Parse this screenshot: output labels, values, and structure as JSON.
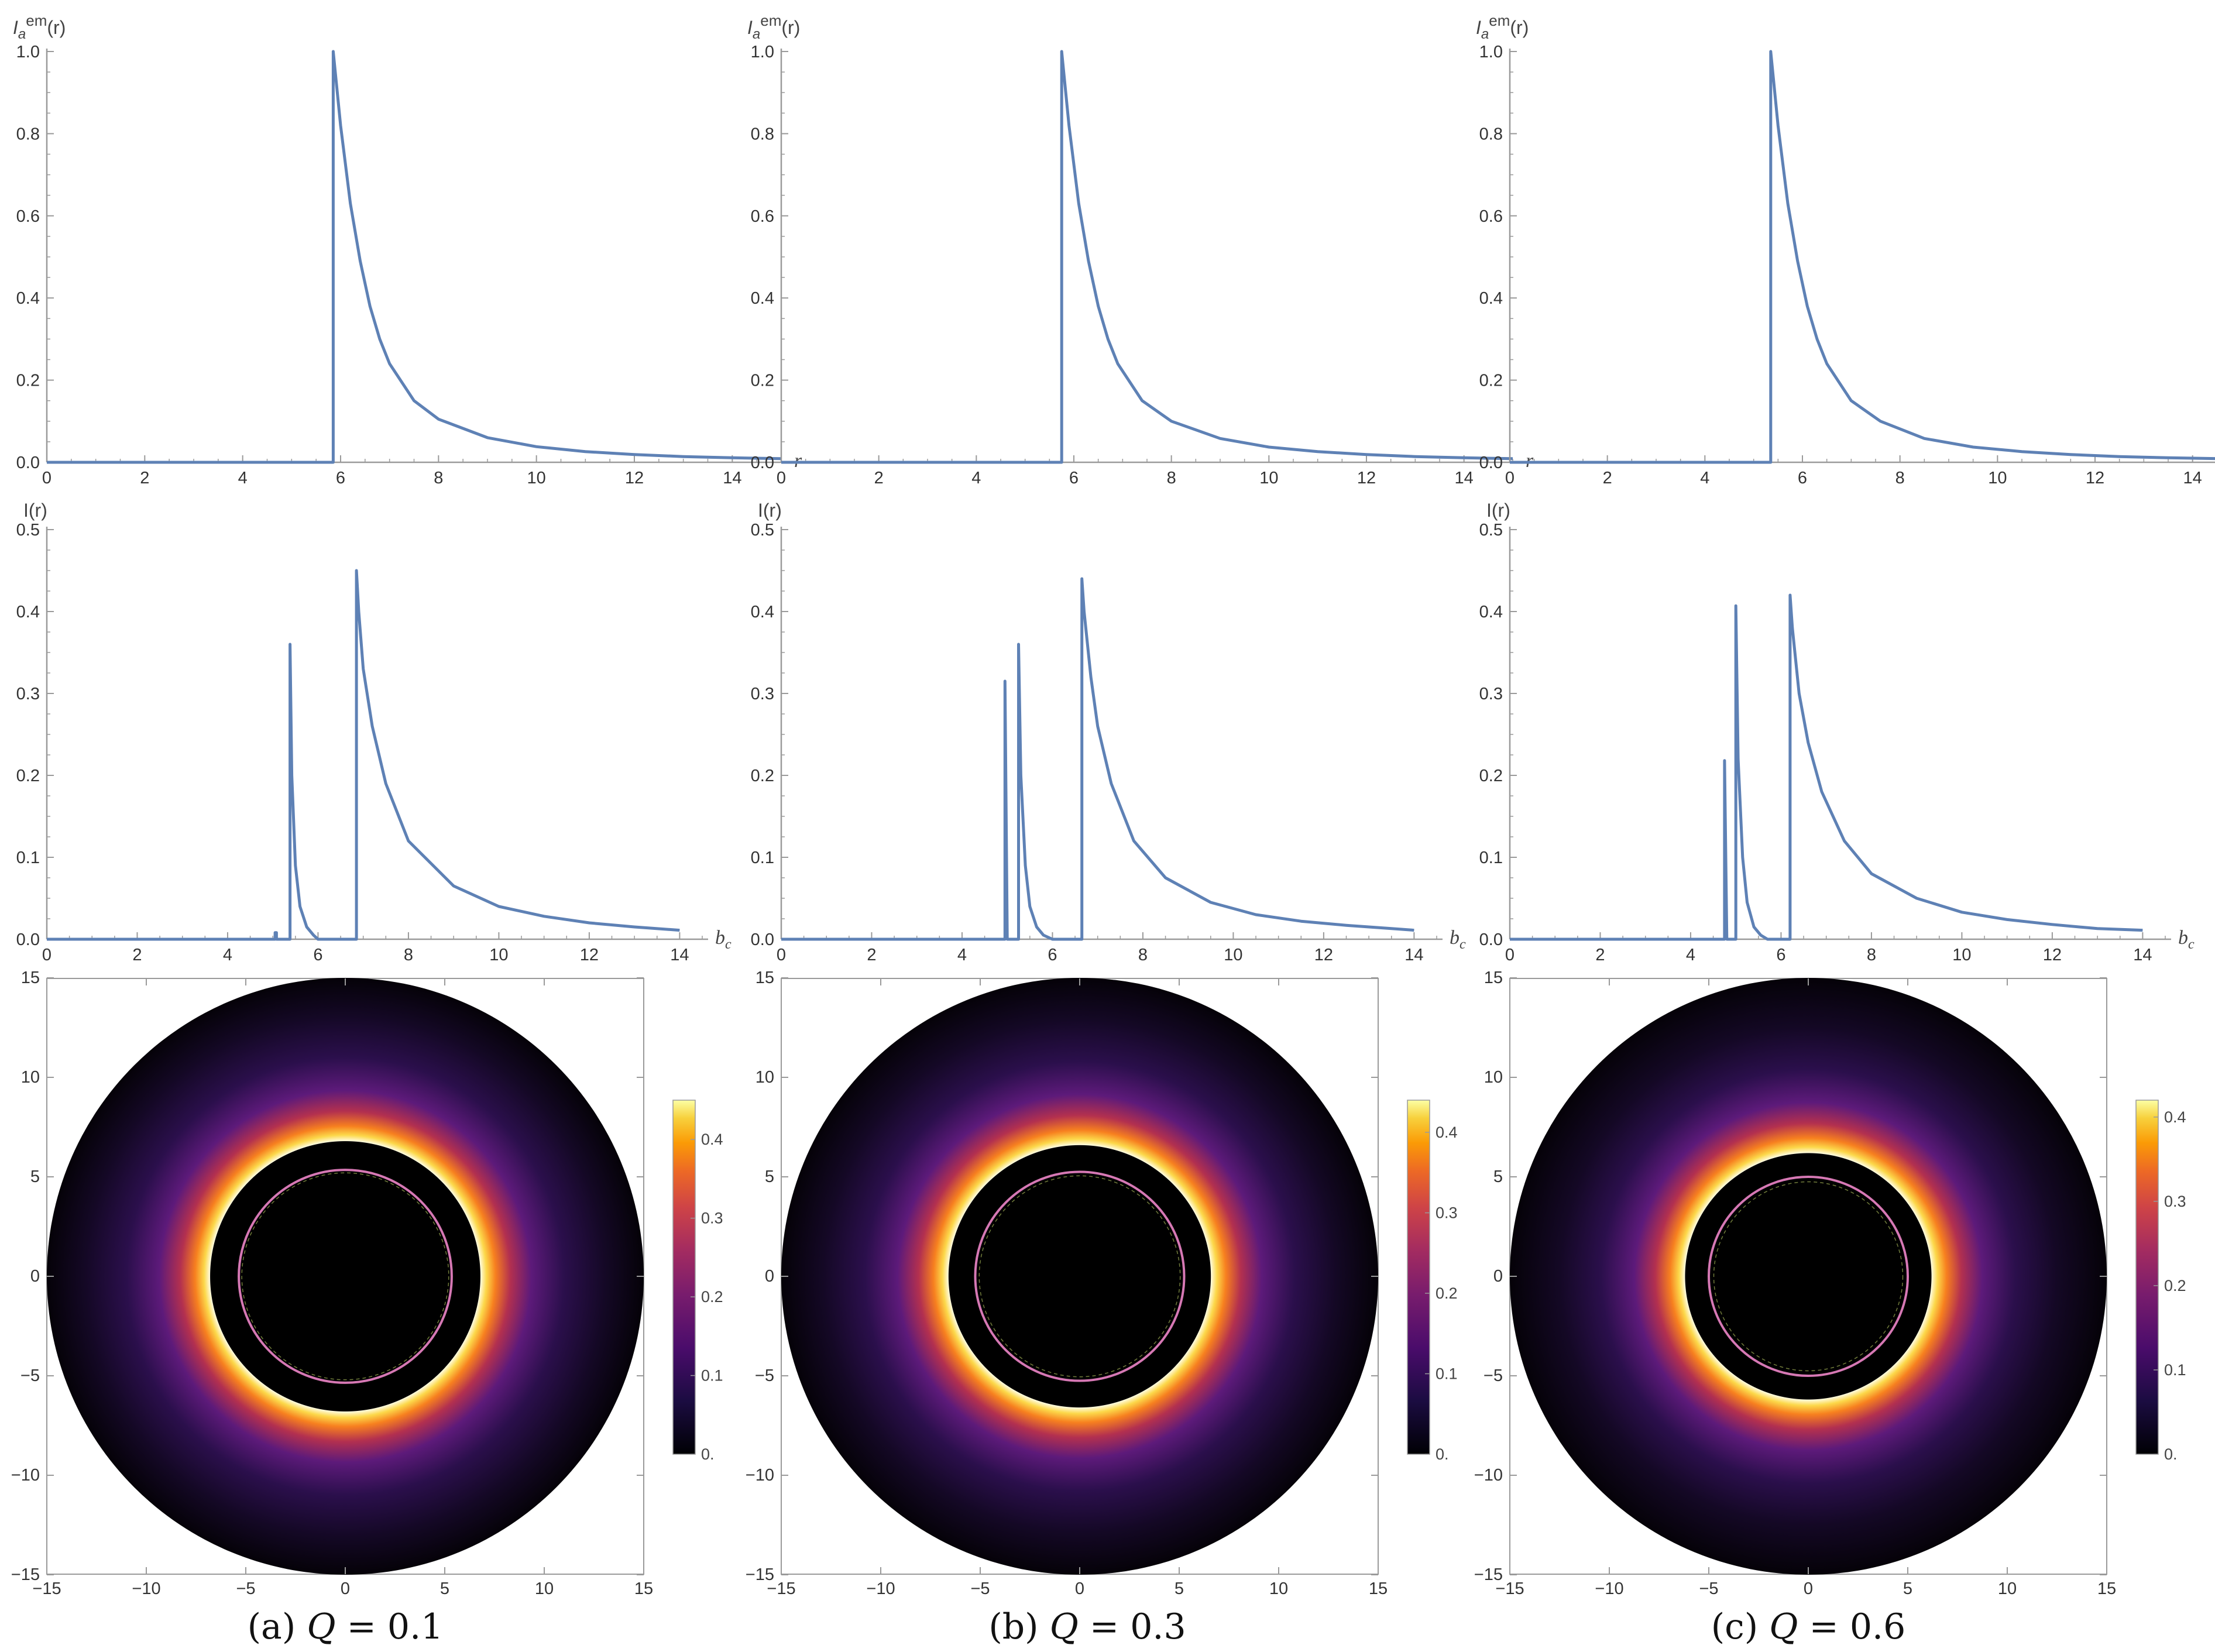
{
  "chart_data": [
    {
      "type": "line",
      "panel": "a",
      "row": "emission",
      "ylabel": "I_a^em(r)",
      "ylabel_sup": "em",
      "xlabel": "r",
      "xlim": [
        0,
        15
      ],
      "ylim": [
        0,
        1
      ],
      "xticks": [
        "0",
        "2",
        "4",
        "6",
        "8",
        "10",
        "12",
        "14"
      ],
      "yticks": [
        "0.0",
        "0.2",
        "0.4",
        "0.6",
        "0.8",
        "1.0"
      ],
      "series": [
        {
          "start": 5.85,
          "x": [
            5.85,
            6.0,
            6.2,
            6.4,
            6.6,
            6.8,
            7.0,
            7.5,
            8,
            9,
            10,
            11,
            12,
            13,
            14,
            15
          ],
          "values": [
            1.0,
            0.82,
            0.63,
            0.49,
            0.38,
            0.3,
            0.24,
            0.15,
            0.105,
            0.06,
            0.038,
            0.026,
            0.019,
            0.014,
            0.011,
            0.009
          ]
        }
      ]
    },
    {
      "type": "line",
      "panel": "b",
      "row": "emission",
      "ylabel": "I_a^em(r)",
      "ylabel_sup": "em",
      "xlabel": "r",
      "xlim": [
        0,
        15
      ],
      "ylim": [
        0,
        1
      ],
      "xticks": [
        "0",
        "2",
        "4",
        "6",
        "8",
        "10",
        "12",
        "14"
      ],
      "yticks": [
        "0.0",
        "0.2",
        "0.4",
        "0.6",
        "0.8",
        "1.0"
      ],
      "series": [
        {
          "start": 5.75,
          "x": [
            5.75,
            5.9,
            6.1,
            6.3,
            6.5,
            6.7,
            6.9,
            7.4,
            8,
            9,
            10,
            11,
            12,
            13,
            14,
            15
          ],
          "values": [
            1.0,
            0.82,
            0.63,
            0.49,
            0.38,
            0.3,
            0.24,
            0.15,
            0.1,
            0.058,
            0.037,
            0.026,
            0.019,
            0.014,
            0.011,
            0.009
          ]
        }
      ]
    },
    {
      "type": "line",
      "panel": "c",
      "row": "emission",
      "ylabel": "I_a^em(r)",
      "ylabel_sup": "em",
      "xlabel": "r",
      "xlim": [
        0,
        15
      ],
      "ylim": [
        0,
        1
      ],
      "xticks": [
        "0",
        "2",
        "4",
        "6",
        "8",
        "10",
        "12",
        "14"
      ],
      "yticks": [
        "0.0",
        "0.2",
        "0.4",
        "0.6",
        "0.8",
        "1.0"
      ],
      "series": [
        {
          "start": 5.35,
          "x": [
            5.35,
            5.5,
            5.7,
            5.9,
            6.1,
            6.3,
            6.5,
            7.0,
            7.6,
            8.5,
            9.5,
            10.5,
            11.5,
            12.5,
            13.5,
            15
          ],
          "values": [
            1.0,
            0.82,
            0.63,
            0.49,
            0.38,
            0.3,
            0.24,
            0.15,
            0.1,
            0.058,
            0.037,
            0.026,
            0.019,
            0.014,
            0.011,
            0.008
          ]
        }
      ]
    },
    {
      "type": "line",
      "panel": "a",
      "row": "observed",
      "ylabel": "I(r)",
      "xlabel": "b_c",
      "xlim": [
        0,
        14.5
      ],
      "ylim": [
        0,
        0.5
      ],
      "xticks": [
        "0",
        "2",
        "4",
        "6",
        "8",
        "10",
        "12",
        "14"
      ],
      "yticks": [
        "0.0",
        "0.1",
        "0.2",
        "0.3",
        "0.4",
        "0.5"
      ],
      "series": [
        {
          "x": [
            0,
            5.05,
            5.05,
            5.08,
            5.08,
            5.38,
            5.38,
            5.42,
            5.5,
            5.6,
            5.75,
            5.9,
            6.0,
            6.85,
            6.85,
            6.9,
            7.0,
            7.2,
            7.5,
            8,
            9,
            10,
            11,
            12,
            13,
            14
          ],
          "values": [
            0,
            0,
            0.008,
            0.008,
            0,
            0,
            0.36,
            0.2,
            0.09,
            0.04,
            0.015,
            0.005,
            0,
            0,
            0.45,
            0.4,
            0.33,
            0.26,
            0.19,
            0.12,
            0.065,
            0.04,
            0.028,
            0.02,
            0.015,
            0.011
          ]
        }
      ]
    },
    {
      "type": "line",
      "panel": "b",
      "row": "observed",
      "ylabel": "I(r)",
      "xlabel": "b_c",
      "xlim": [
        0,
        14.5
      ],
      "ylim": [
        0,
        0.5
      ],
      "xticks": [
        "0",
        "2",
        "4",
        "6",
        "8",
        "10",
        "12",
        "14"
      ],
      "yticks": [
        "0.0",
        "0.1",
        "0.2",
        "0.3",
        "0.4",
        "0.5"
      ],
      "series": [
        {
          "x": [
            0,
            4.95,
            4.95,
            5.0,
            5.0,
            5.25,
            5.25,
            5.3,
            5.4,
            5.5,
            5.65,
            5.8,
            6.0,
            6.65,
            6.65,
            6.7,
            6.85,
            7.0,
            7.3,
            7.8,
            8.5,
            9.5,
            10.5,
            11.5,
            12.5,
            13.5,
            14
          ],
          "values": [
            0,
            0,
            0.315,
            0,
            0,
            0,
            0.36,
            0.2,
            0.09,
            0.04,
            0.015,
            0.005,
            0,
            0,
            0.44,
            0.4,
            0.32,
            0.26,
            0.19,
            0.12,
            0.075,
            0.045,
            0.03,
            0.022,
            0.017,
            0.013,
            0.011
          ]
        }
      ]
    },
    {
      "type": "line",
      "panel": "c",
      "row": "observed",
      "ylabel": "I(r)",
      "xlabel": "b_c",
      "xlim": [
        0,
        14.5
      ],
      "ylim": [
        0,
        0.5
      ],
      "xticks": [
        "0",
        "2",
        "4",
        "6",
        "8",
        "10",
        "12",
        "14"
      ],
      "yticks": [
        "0.0",
        "0.1",
        "0.2",
        "0.3",
        "0.4",
        "0.5"
      ],
      "series": [
        {
          "x": [
            0,
            4.75,
            4.75,
            4.8,
            4.8,
            5.0,
            5.0,
            5.05,
            5.15,
            5.25,
            5.4,
            5.55,
            5.7,
            6.2,
            6.2,
            6.25,
            6.4,
            6.6,
            6.9,
            7.4,
            8,
            9,
            10,
            11,
            12,
            13,
            14
          ],
          "values": [
            0,
            0,
            0.218,
            0,
            0,
            0,
            0.407,
            0.22,
            0.1,
            0.045,
            0.015,
            0.005,
            0,
            0,
            0.42,
            0.38,
            0.3,
            0.24,
            0.18,
            0.12,
            0.08,
            0.05,
            0.033,
            0.024,
            0.018,
            0.013,
            0.011
          ]
        }
      ]
    },
    {
      "type": "heatmap",
      "panel": "a",
      "row": "image",
      "xlim": [
        -15,
        15
      ],
      "ylim": [
        -15,
        15
      ],
      "xticks": [
        "-15",
        "-10",
        "-5",
        "0",
        "5",
        "10",
        "15"
      ],
      "yticks": [
        "-15",
        "-10",
        "-5",
        "0",
        "5",
        "10",
        "15"
      ],
      "colorbar_ticks": [
        "0.",
        "0.1",
        "0.2",
        "0.3",
        "0.4"
      ],
      "colorbar_max": 0.45,
      "disk_radius": 15,
      "shadow_radius": 5.2,
      "photon_ring_radius": 5.35,
      "lensing_ring_radius": 6.0,
      "direct_inner_radius": 6.8
    },
    {
      "type": "heatmap",
      "panel": "b",
      "row": "image",
      "xlim": [
        -15,
        15
      ],
      "ylim": [
        -15,
        15
      ],
      "xticks": [
        "-15",
        "-10",
        "-5",
        "0",
        "5",
        "10",
        "15"
      ],
      "yticks": [
        "-15",
        "-10",
        "-5",
        "0",
        "5",
        "10",
        "15"
      ],
      "colorbar_ticks": [
        "0.",
        "0.1",
        "0.2",
        "0.3",
        "0.4"
      ],
      "colorbar_max": 0.44,
      "disk_radius": 15,
      "shadow_radius": 5.05,
      "photon_ring_radius": 5.25,
      "lensing_ring_radius": 5.8,
      "direct_inner_radius": 6.6
    },
    {
      "type": "heatmap",
      "panel": "c",
      "row": "image",
      "xlim": [
        -15,
        15
      ],
      "ylim": [
        -15,
        15
      ],
      "xticks": [
        "-15",
        "-10",
        "-5",
        "0",
        "5",
        "10",
        "15"
      ],
      "yticks": [
        "-15",
        "-10",
        "-5",
        "0",
        "5",
        "10",
        "15"
      ],
      "colorbar_ticks": [
        "0.",
        "0.1",
        "0.2",
        "0.3",
        "0.4"
      ],
      "colorbar_max": 0.42,
      "disk_radius": 15,
      "shadow_radius": 4.75,
      "photon_ring_radius": 5.0,
      "lensing_ring_radius": 5.5,
      "direct_inner_radius": 6.2
    }
  ],
  "captions": [
    {
      "tag": "(a)",
      "symbol": "Q",
      "value": "= 0.1"
    },
    {
      "tag": "(b)",
      "symbol": "Q",
      "value": "= 0.3"
    },
    {
      "tag": "(c)",
      "symbol": "Q",
      "value": "= 0.6"
    }
  ],
  "colors": {
    "line": "#5e81b5",
    "frame": "#9a9a9a",
    "ring_pink": "#d678b4"
  }
}
